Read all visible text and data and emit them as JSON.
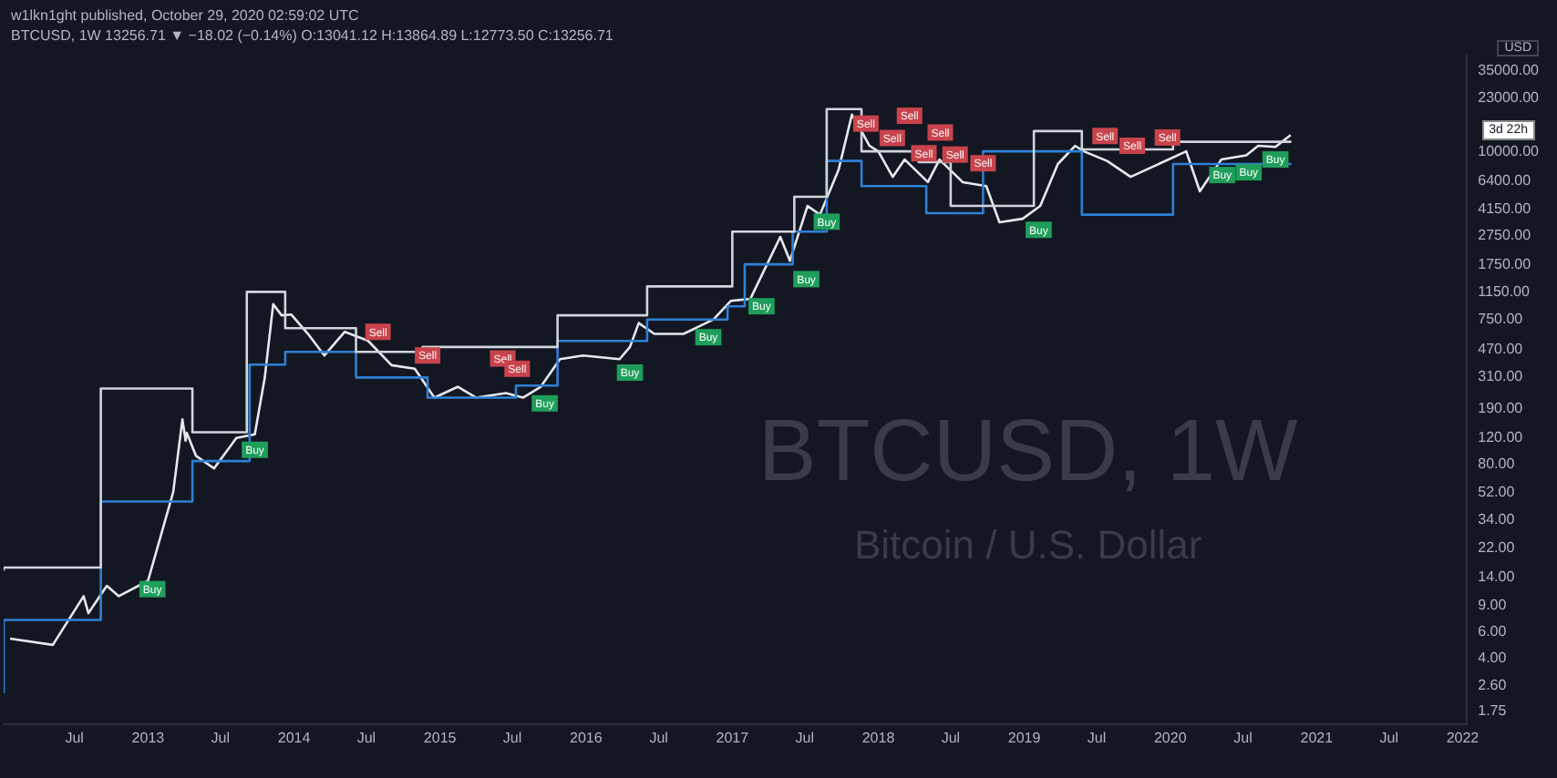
{
  "chart_data": {
    "type": "line",
    "title": "BTCUSD, 1W",
    "subtitle": "Bitcoin / U.S. Dollar",
    "ylabel": "USD",
    "annotations": [
      "w1lkn1ght published, October 29, 2020 02:59:02 UTC",
      "BTCUSD, 1W  13256.71 ▼ −18.02 (−0.14%) O:13041.12 H:13864.89 L:12773.50 C:13256.71",
      "3d 22h"
    ],
    "log": "y",
    "grid": false,
    "legend": false,
    "xlim": [
      "2012-01-06",
      "2022-01-12"
    ],
    "xticks": [
      {
        "value": "2012-07-01",
        "label": "Jul"
      },
      {
        "value": "2013-01-01",
        "label": "2013"
      },
      {
        "value": "2013-07-01",
        "label": "Jul"
      },
      {
        "value": "2014-01-01",
        "label": "2014"
      },
      {
        "value": "2014-07-01",
        "label": "Jul"
      },
      {
        "value": "2015-01-01",
        "label": "2015"
      },
      {
        "value": "2015-07-01",
        "label": "Jul"
      },
      {
        "value": "2016-01-01",
        "label": "2016"
      },
      {
        "value": "2016-07-01",
        "label": "Jul"
      },
      {
        "value": "2017-01-01",
        "label": "2017"
      },
      {
        "value": "2017-07-01",
        "label": "Jul"
      },
      {
        "value": "2018-01-01",
        "label": "2018"
      },
      {
        "value": "2018-07-01",
        "label": "Jul"
      },
      {
        "value": "2019-01-01",
        "label": "2019"
      },
      {
        "value": "2019-07-01",
        "label": "Jul"
      },
      {
        "value": "2020-01-01",
        "label": "2020"
      },
      {
        "value": "2020-07-01",
        "label": "Jul"
      },
      {
        "value": "2021-01-01",
        "label": "2021"
      },
      {
        "value": "2021-07-01",
        "label": "Jul"
      },
      {
        "value": "2022-01-01",
        "label": "2022"
      }
    ],
    "ylim": [
      1.44,
      45000
    ],
    "yticks": [
      {
        "value": 1.75,
        "label": "1.75"
      },
      {
        "value": 2.6,
        "label": "2.60"
      },
      {
        "value": 4,
        "label": "4.00"
      },
      {
        "value": 6,
        "label": "6.00"
      },
      {
        "value": 9,
        "label": "9.00"
      },
      {
        "value": 14,
        "label": "14.00"
      },
      {
        "value": 22,
        "label": "22.00"
      },
      {
        "value": 34,
        "label": "34.00"
      },
      {
        "value": 52,
        "label": "52.00"
      },
      {
        "value": 80,
        "label": "80.00"
      },
      {
        "value": 120,
        "label": "120.00"
      },
      {
        "value": 190,
        "label": "190.00"
      },
      {
        "value": 310,
        "label": "310.00"
      },
      {
        "value": 470,
        "label": "470.00"
      },
      {
        "value": 750,
        "label": "750.00"
      },
      {
        "value": 1150,
        "label": "1150.00"
      },
      {
        "value": 1750,
        "label": "1750.00"
      },
      {
        "value": 2750,
        "label": "2750.00"
      },
      {
        "value": 4150,
        "label": "4150.00"
      },
      {
        "value": 6400,
        "label": "6400.00"
      },
      {
        "value": 10000,
        "label": "10000.00"
      },
      {
        "value": 23000,
        "label": "23000.00"
      },
      {
        "value": 35000,
        "label": "35000.00"
      }
    ],
    "series": [
      {
        "type": "step",
        "color": "#d1d4dc",
        "x": [
          "2012-01-06",
          "2012-09-05",
          "2013-04-22",
          "2013-09-05",
          "2013-12-10",
          "2014-06-05",
          "2014-11-18",
          "2015-10-22",
          "2016-06-02",
          "2017-01-01",
          "2017-06-05",
          "2017-08-25",
          "2017-11-20",
          "2018-04-12",
          "2018-07-01",
          "2019-01-25",
          "2019-05-25",
          "2020-01-08",
          "2020-05-18",
          "2020-10-30"
        ],
        "values": [
          15.4,
          16.2,
          258,
          131,
          1150,
          656,
          454,
          490,
          800,
          1250,
          2920,
          5000,
          19400,
          10100,
          8550,
          4340,
          13800,
          10400,
          11700,
          11700
        ]
      },
      {
        "type": "step",
        "color": "#2f80d6",
        "x": [
          "2012-01-06",
          "2012-09-05",
          "2013-04-22",
          "2013-09-12",
          "2013-12-10",
          "2014-06-05",
          "2014-12-01",
          "2015-07-10",
          "2015-10-22",
          "2016-06-02",
          "2016-12-20",
          "2017-02-01",
          "2017-06-01",
          "2017-08-25",
          "2017-11-20",
          "2018-05-01",
          "2018-09-20",
          "2019-05-25",
          "2020-01-08",
          "2020-05-01",
          "2020-10-30"
        ],
        "values": [
          2.32,
          7.2,
          45,
          84,
          373,
          454,
          306,
          224,
          270,
          538,
          750,
          920,
          1760,
          2920,
          8700,
          5900,
          3880,
          10100,
          3790,
          8300,
          8300
        ]
      },
      {
        "type": "line",
        "color": "#e6e9f0",
        "x": [
          "2012-01-22",
          "2012-05-08",
          "2012-07-24",
          "2012-08-05",
          "2012-09-20",
          "2012-10-20",
          "2013-01-01",
          "2013-03-05",
          "2013-03-28",
          "2013-04-05",
          "2013-04-08",
          "2013-05-01",
          "2013-06-15",
          "2013-08-10",
          "2013-09-25",
          "2013-10-20",
          "2013-11-10",
          "2013-12-01",
          "2013-12-25",
          "2014-02-05",
          "2014-03-18",
          "2014-05-08",
          "2014-07-05",
          "2014-09-02",
          "2014-10-30",
          "2014-12-18",
          "2015-02-15",
          "2015-04-01",
          "2015-06-15",
          "2015-07-28",
          "2015-09-10",
          "2015-10-28",
          "2015-12-25",
          "2016-03-25",
          "2016-04-20",
          "2016-05-12",
          "2016-06-20",
          "2016-09-01",
          "2016-11-15",
          "2016-12-28",
          "2017-02-15",
          "2017-05-01",
          "2017-05-25",
          "2017-07-08",
          "2017-08-08",
          "2017-09-24",
          "2017-10-27",
          "2017-11-18",
          "2017-12-10",
          "2018-01-01",
          "2018-02-06",
          "2018-03-08",
          "2018-05-05",
          "2018-06-03",
          "2018-07-31",
          "2018-09-28",
          "2018-10-31",
          "2018-12-28",
          "2019-02-10",
          "2019-03-26",
          "2019-05-08",
          "2019-05-30",
          "2019-07-27",
          "2019-09-24",
          "2020-02-10",
          "2020-03-15",
          "2020-05-08",
          "2020-07-09",
          "2020-08-08",
          "2020-09-20",
          "2020-10-28"
        ],
        "values": [
          5.4,
          4.9,
          10.4,
          8,
          12.2,
          10.4,
          13.2,
          52,
          160,
          115,
          130,
          91,
          75,
          120,
          127,
          306,
          950,
          800,
          810,
          600,
          430,
          620,
          540,
          370,
          350,
          224,
          265,
          224,
          240,
          224,
          265,
          406,
          430,
          406,
          490,
          710,
          600,
          600,
          750,
          1000,
          1030,
          2690,
          1860,
          4340,
          3790,
          7640,
          17800,
          14100,
          11000,
          10100,
          6800,
          8900,
          6270,
          8900,
          6270,
          5900,
          3370,
          3560,
          4340,
          8300,
          11000,
          10100,
          8700,
          6800,
          10100,
          5440,
          8900,
          9500,
          11000,
          10800,
          13000
        ]
      },
      {
        "type": "scatter",
        "color": "#c8434b",
        "x": [
          "2014-07-30",
          "2014-12-01",
          "2015-06-07",
          "2015-07-13",
          "2017-12-01",
          "2018-02-05",
          "2018-03-20",
          "2018-04-25",
          "2018-06-05",
          "2018-07-12",
          "2018-09-20",
          "2019-07-22",
          "2019-09-28",
          "2019-12-25"
        ],
        "values": [
          620,
          430,
          410,
          350,
          15500,
          12400,
          17500,
          9800,
          13500,
          9600,
          8400,
          12800,
          11000,
          12500
        ],
        "value_labels": [
          "Sell",
          "Sell",
          "Sell",
          "Sell",
          "Sell",
          "Sell",
          "Sell",
          "Sell",
          "Sell",
          "Sell",
          "Sell",
          "Sell",
          "Sell",
          "Sell"
        ]
      },
      {
        "type": "scatter",
        "color": "#1e9e5a",
        "x": [
          "2013-01-12",
          "2013-09-25",
          "2015-09-20",
          "2016-04-20",
          "2016-11-02",
          "2017-03-15",
          "2017-07-05",
          "2017-08-25",
          "2019-02-06",
          "2020-05-10",
          "2020-07-15",
          "2020-09-20"
        ],
        "values": [
          11.6,
          100,
          205,
          330,
          570,
          920,
          1400,
          3400,
          3000,
          7000,
          7300,
          8900
        ],
        "value_labels": [
          "Buy",
          "Buy",
          "Buy",
          "Buy",
          "Buy",
          "Buy",
          "Buy",
          "Buy",
          "Buy",
          "Buy",
          "Buy",
          "Buy"
        ]
      }
    ]
  }
}
